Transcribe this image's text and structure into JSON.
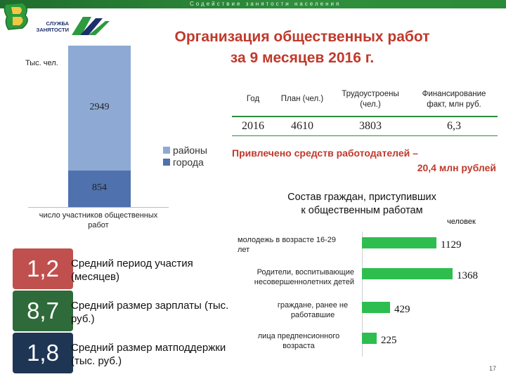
{
  "banner": {
    "text": "Содействие занятости населения"
  },
  "logo": {
    "line1": "СЛУЖБА",
    "line2": "ЗАНЯТОСТИ"
  },
  "title": {
    "line1": "Организация общественных работ",
    "line2": "за 9 месяцев 2016 г."
  },
  "participants_chart": {
    "unit": "Тыс. чел.",
    "caption": "число участников общественных работ",
    "legend": [
      {
        "name": "районы",
        "color": "#8eaad4"
      },
      {
        "name": "города",
        "color": "#4f71ad"
      }
    ]
  },
  "chart_data": [
    {
      "type": "bar",
      "stacked": true,
      "ylabel": "Тыс. чел.",
      "categories": [
        "число участников общественных работ"
      ],
      "series": [
        {
          "name": "города",
          "values": [
            854
          ],
          "color": "#4f71ad"
        },
        {
          "name": "районы",
          "values": [
            2949
          ],
          "color": "#8eaad4"
        }
      ],
      "legend_position": "right"
    },
    {
      "type": "bar",
      "orientation": "horizontal",
      "title": "Состав граждан, приступивших к общественным работам",
      "unit": "человек",
      "categories": [
        "молодежь в возрасте 16-29 лет",
        "Родители, воспитывающие несовершеннолетних детей",
        "граждане, ранее не работавшие",
        "лица предпенсионного возраста"
      ],
      "values": [
        1129,
        1368,
        429,
        225
      ],
      "color": "#2ebd4f",
      "xlim": [
        0,
        1400
      ]
    }
  ],
  "stats": [
    {
      "value": "1,2",
      "label": "Средний период участия (месяцев)",
      "color": "#c0504d"
    },
    {
      "value": "8,7",
      "label": "Средний размер зарплаты (тыс. руб.)",
      "color": "#2f6a3a"
    },
    {
      "value": "1,8",
      "label": "Средний размер матподдержки (тыс. руб.)",
      "color": "#1f3554"
    }
  ],
  "table": {
    "headers": [
      "Год",
      "План (чел.)",
      "Трудоустроены (чел.)",
      "Финансирование факт, млн руб."
    ],
    "row": [
      "2016",
      "4610",
      "3803",
      "6,3"
    ]
  },
  "attracted": {
    "line1": "Привлечено средств работодателей –",
    "line2": "20,4 млн рублей"
  },
  "composition": {
    "title_line1": "Состав граждан, приступивших",
    "title_line2": "к общественным работам",
    "unit": "человек",
    "labels": [
      [
        "молодежь в возрасте 16-29",
        "лет"
      ],
      [
        "Родители, воспитывающие",
        "несовершеннолетних детей"
      ],
      [
        "граждане, ранее не",
        "работавшие"
      ],
      [
        "лица предпенсионного",
        "возраста"
      ]
    ]
  },
  "page_number": "17"
}
